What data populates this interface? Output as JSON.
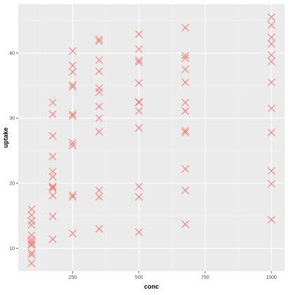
{
  "chart_data": {
    "type": "scatter",
    "xlabel": "conc",
    "ylabel": "uptake",
    "xlim": [
      45,
      1050
    ],
    "ylim": [
      6.5,
      47.5
    ],
    "x_ticks": [
      250,
      500,
      750,
      1000
    ],
    "x_tick_labels": [
      "250",
      "500",
      "750",
      "1000"
    ],
    "y_ticks": [
      10,
      20,
      30,
      40
    ],
    "y_tick_labels": [
      "10",
      "20",
      "30",
      "40"
    ],
    "grid": true,
    "panel_background": "#ebebeb",
    "grid_color": "#ffffff",
    "marker": "x",
    "marker_color": "#f8766d",
    "series": [
      {
        "x": [
          95,
          95,
          95,
          95,
          95,
          95,
          95,
          95,
          95,
          95,
          95,
          95,
          175,
          175,
          175,
          175,
          175,
          175,
          175,
          175,
          175,
          175,
          175,
          175,
          250,
          250,
          250,
          250,
          250,
          250,
          250,
          250,
          250,
          250,
          250,
          250,
          350,
          350,
          350,
          350,
          350,
          350,
          350,
          350,
          350,
          350,
          350,
          350,
          500,
          500,
          500,
          500,
          500,
          500,
          500,
          500,
          500,
          500,
          500,
          500,
          675,
          675,
          675,
          675,
          675,
          675,
          675,
          675,
          675,
          675,
          675,
          675,
          1000,
          1000,
          1000,
          1000,
          1000,
          1000,
          1000,
          1000,
          1000,
          1000,
          1000,
          1000
        ],
        "y": [
          16.0,
          15.1,
          14.2,
          13.6,
          12.0,
          11.3,
          10.9,
          10.6,
          10.5,
          9.3,
          9.0,
          7.7,
          32.4,
          30.6,
          27.3,
          24.1,
          21.8,
          21.0,
          19.5,
          19.2,
          18.1,
          14.9,
          11.4,
          19.4,
          40.3,
          38.1,
          37.1,
          35.1,
          34.8,
          30.6,
          30.3,
          26.2,
          25.8,
          18.2,
          17.9,
          12.3,
          42.1,
          41.8,
          38.9,
          37.2,
          34.6,
          34.0,
          31.8,
          30.0,
          27.9,
          18.9,
          17.9,
          13.0,
          42.9,
          40.6,
          38.9,
          38.6,
          35.4,
          32.5,
          32.4,
          31.1,
          28.5,
          19.5,
          17.9,
          12.5,
          43.9,
          39.6,
          39.2,
          37.5,
          35.5,
          32.4,
          31.1,
          28.1,
          27.8,
          22.2,
          18.9,
          13.7,
          45.5,
          44.3,
          42.4,
          41.4,
          39.7,
          38.7,
          35.5,
          31.5,
          27.8,
          21.9,
          19.9,
          14.4
        ]
      }
    ]
  }
}
